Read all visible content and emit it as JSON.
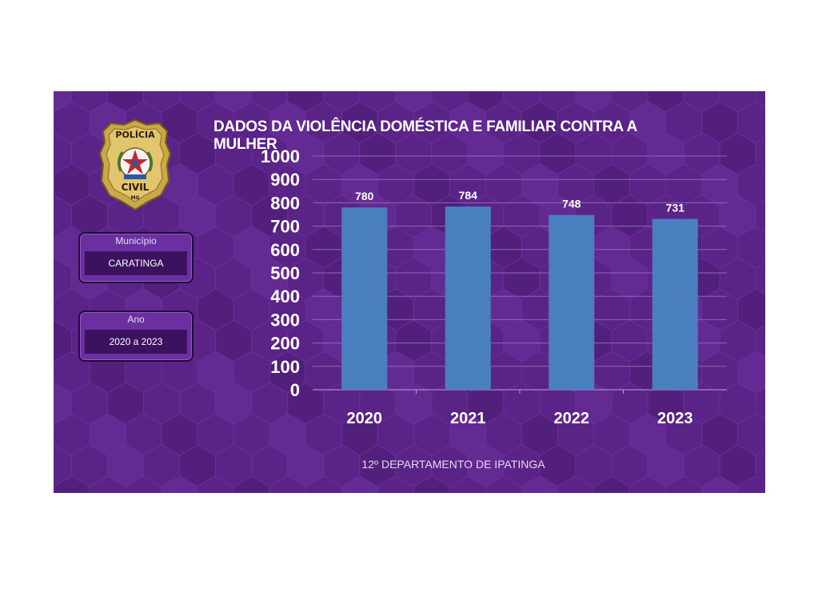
{
  "header": {
    "title": "DADOS DA VIOLÊNCIA DOMÉSTICA E FAMILIAR CONTRA A MULHER"
  },
  "logo": {
    "top_text": "POLÍCIA",
    "bottom_text": "CIVIL",
    "state": "MG"
  },
  "filters": {
    "municipio": {
      "label": "Município",
      "value": "CARATINGA"
    },
    "ano": {
      "label": "Ano",
      "value": "2020 a 2023"
    }
  },
  "footer": {
    "text": "12º DEPARTAMENTO DE IPATINGA"
  },
  "colors": {
    "background": "#5a2387",
    "bar": "#4a7fbf",
    "text": "#ffffff"
  },
  "chart_data": {
    "type": "bar",
    "title": "DADOS DA VIOLÊNCIA DOMÉSTICA E FAMILIAR CONTRA A MULHER",
    "categories": [
      "2020",
      "2021",
      "2022",
      "2023"
    ],
    "values": [
      780,
      784,
      748,
      731
    ],
    "data_labels": [
      "780",
      "784",
      "748",
      "731"
    ],
    "ylim": [
      0,
      1000
    ],
    "yticks": [
      "0",
      "100",
      "200",
      "300",
      "400",
      "500",
      "600",
      "700",
      "800",
      "900",
      "1000"
    ],
    "grid": true,
    "legend": "none"
  }
}
